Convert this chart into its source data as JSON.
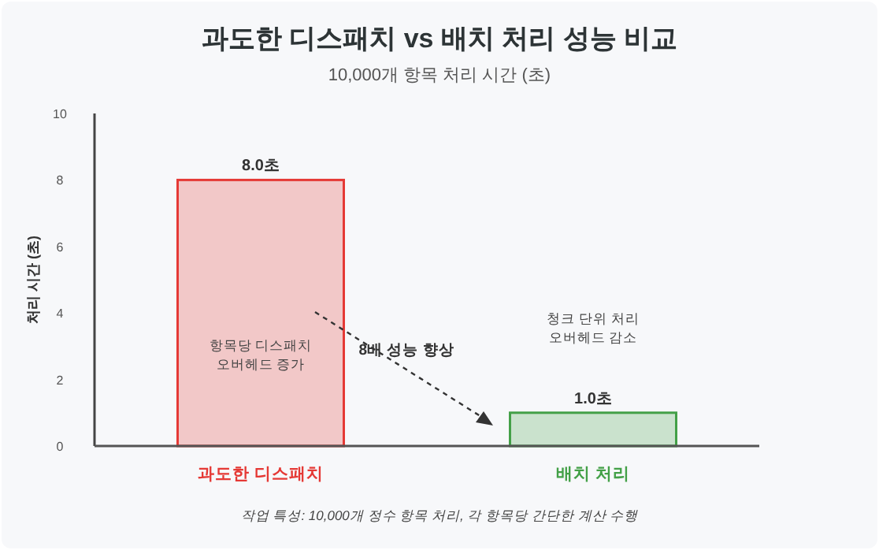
{
  "chart_data": {
    "type": "bar",
    "title": "과도한 디스패치 vs 배치 처리 성능 비교",
    "subtitle": "10,000개 항목 처리 시간 (초)",
    "ylabel": "처리 시간 (초)",
    "categories": [
      "과도한 디스패치",
      "배치 처리"
    ],
    "values": [
      8.0,
      1.0
    ],
    "colors": [
      "#e53935",
      "#43a047"
    ],
    "value_labels": [
      "8.0초",
      "1.0초"
    ],
    "ylim": [
      0,
      10
    ],
    "yticks": [
      0,
      2,
      4,
      6,
      8,
      10
    ],
    "grid": false,
    "annotations": [
      "항목당 디스패치\n오버헤드 증가",
      "청크 단위 처리\n오버헤드 감소",
      "8배 성능 향상",
      "작업 특성: 10,000개 정수 항목 처리, 각 항목당 간단한 계산 수행"
    ]
  }
}
